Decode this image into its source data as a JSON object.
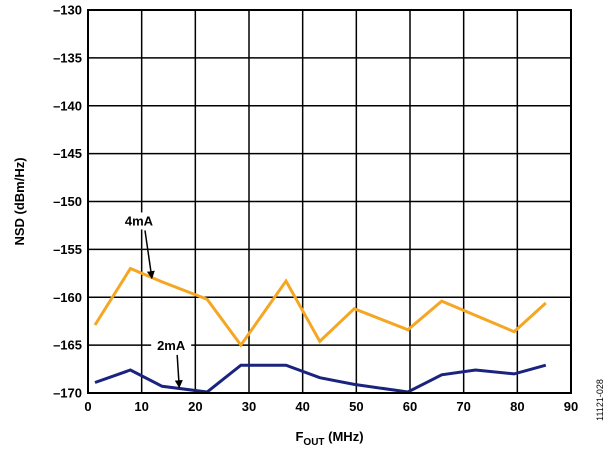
{
  "chart_data": {
    "type": "line",
    "title": "",
    "xlabel": {
      "main": "F",
      "sub": "OUT",
      "unit": " (MHz)"
    },
    "ylabel": "NSD (dBm/Hz)",
    "xlim": [
      0,
      90
    ],
    "ylim": [
      -170,
      -130
    ],
    "xticks": [
      0,
      10,
      20,
      30,
      40,
      50,
      60,
      70,
      80,
      90
    ],
    "xtick_labels": [
      "0",
      "10",
      "20",
      "30",
      "40",
      "50",
      "60",
      "70",
      "80",
      "90"
    ],
    "yticks": [
      -130,
      -135,
      -140,
      -145,
      -150,
      -155,
      -160,
      -165,
      -170
    ],
    "ytick_labels": [
      "–130",
      "–135",
      "–140",
      "–145",
      "–150",
      "–155",
      "–160",
      "–165",
      "–170"
    ],
    "grid": true,
    "series": [
      {
        "name": "4mA",
        "color": "#F5A623",
        "x": [
          1.3,
          7.9,
          13.8,
          22.2,
          28.5,
          36.9,
          43.2,
          49.6,
          59.6,
          65.9,
          72.2,
          79.4,
          85.3
        ],
        "y": [
          -162.9,
          -157.0,
          -158.4,
          -160.2,
          -165.0,
          -158.3,
          -164.6,
          -161.2,
          -163.4,
          -160.4,
          -161.9,
          -163.6,
          -160.6
        ]
      },
      {
        "name": "2mA",
        "color": "#1A237E",
        "x": [
          1.3,
          7.9,
          13.8,
          22.2,
          28.5,
          36.9,
          43.2,
          49.6,
          59.6,
          65.9,
          72.2,
          79.4,
          85.3
        ],
        "y": [
          -168.9,
          -167.6,
          -169.3,
          -169.9,
          -167.1,
          -167.1,
          -168.4,
          -169.1,
          -169.9,
          -168.1,
          -167.6,
          -168.0,
          -167.1
        ]
      }
    ],
    "annotations": [
      {
        "text": "4mA",
        "series": "4mA",
        "arrow_to": [
          11.9,
          -158.0
        ],
        "text_at": [
          9.5,
          -152.5
        ]
      },
      {
        "text": "2mA",
        "series": "2mA",
        "arrow_to": [
          17.0,
          -169.4
        ],
        "text_at": [
          15.5,
          -165.5
        ]
      }
    ],
    "figure_id": "11121-028"
  }
}
